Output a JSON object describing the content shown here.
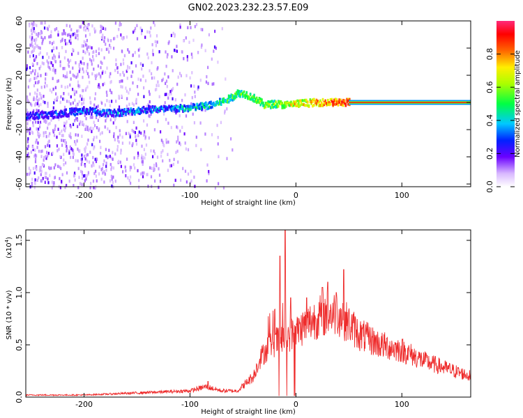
{
  "title": "GN02.2023.232.23.57.E09",
  "colors": {
    "snr_line": "#ee2a2a",
    "axis": "#000000",
    "background": "#ffffff"
  },
  "chart_data": [
    {
      "type": "heatmap",
      "name": "spectrogram",
      "xlabel": "Height of straight line (km)",
      "ylabel": "Frequency (Hz)",
      "xlim": [
        -255,
        165
      ],
      "ylim": [
        -62,
        60
      ],
      "xticks": [
        -200,
        -100,
        0,
        100
      ],
      "yticks": [
        -60,
        -40,
        -20,
        0,
        20,
        40,
        60
      ],
      "colorbar": {
        "label": "Normalized spectral amplitude",
        "range": [
          0,
          1
        ],
        "ticks": [
          0.0,
          0.2,
          0.4,
          0.6,
          0.8
        ],
        "tick_labels": [
          "0.0",
          "0.2",
          "0.4",
          "0.6",
          "0.8"
        ]
      },
      "ridge": {
        "x": [
          -255,
          -230,
          -200,
          -180,
          -160,
          -140,
          -120,
          -100,
          -80,
          -65,
          -55,
          -48,
          -40,
          -30,
          -20,
          -10,
          0,
          20,
          50,
          165
        ],
        "y": [
          -10,
          -9,
          -6,
          -8,
          -7,
          -5,
          -5,
          -4,
          -2,
          2,
          7,
          6,
          3,
          -2,
          -1,
          -2,
          -1,
          0,
          0,
          0
        ]
      },
      "ridge_amplitude": {
        "x": [
          -255,
          -200,
          -120,
          -80,
          -55,
          -20,
          0,
          50,
          165
        ],
        "level": [
          0.25,
          0.3,
          0.35,
          0.45,
          0.55,
          0.6,
          0.7,
          0.9,
          0.95
        ]
      }
    },
    {
      "type": "line",
      "name": "snr",
      "xlabel": "Height of straight line (km)",
      "ylabel": "SNR (10 * v/v)",
      "y_scale_label": "(x10",
      "y_scale_exponent": "4",
      "y_scale_suffix": ")",
      "xlim": [
        -255,
        165
      ],
      "ylim": [
        0,
        1.6
      ],
      "xticks": [
        -200,
        -100,
        0,
        100
      ],
      "yticks": [
        0.0,
        0.5,
        1.0,
        1.5
      ],
      "ytick_labels": [
        "0.0",
        "0.5",
        "1.0",
        "1.5"
      ],
      "series": [
        {
          "envelope_x": [
            -255,
            -200,
            -150,
            -100,
            -85,
            -70,
            -55,
            -40,
            -35,
            -25,
            -15,
            -5,
            0,
            10,
            20,
            30,
            40,
            50,
            60,
            80,
            100,
            120,
            140,
            165
          ],
          "envelope_y": [
            0.02,
            0.02,
            0.04,
            0.06,
            0.1,
            0.06,
            0.06,
            0.2,
            0.35,
            0.5,
            0.55,
            0.6,
            0.62,
            0.7,
            0.76,
            0.8,
            0.8,
            0.7,
            0.6,
            0.5,
            0.45,
            0.35,
            0.28,
            0.2
          ],
          "spikes_x": [
            -83,
            -20,
            -15,
            -10,
            -5,
            10,
            25,
            30,
            38,
            45
          ],
          "spikes_y": [
            0.15,
            0.85,
            1.35,
            1.6,
            0.95,
            0.95,
            1.05,
            1.1,
            1.0,
            1.22
          ]
        }
      ]
    }
  ]
}
